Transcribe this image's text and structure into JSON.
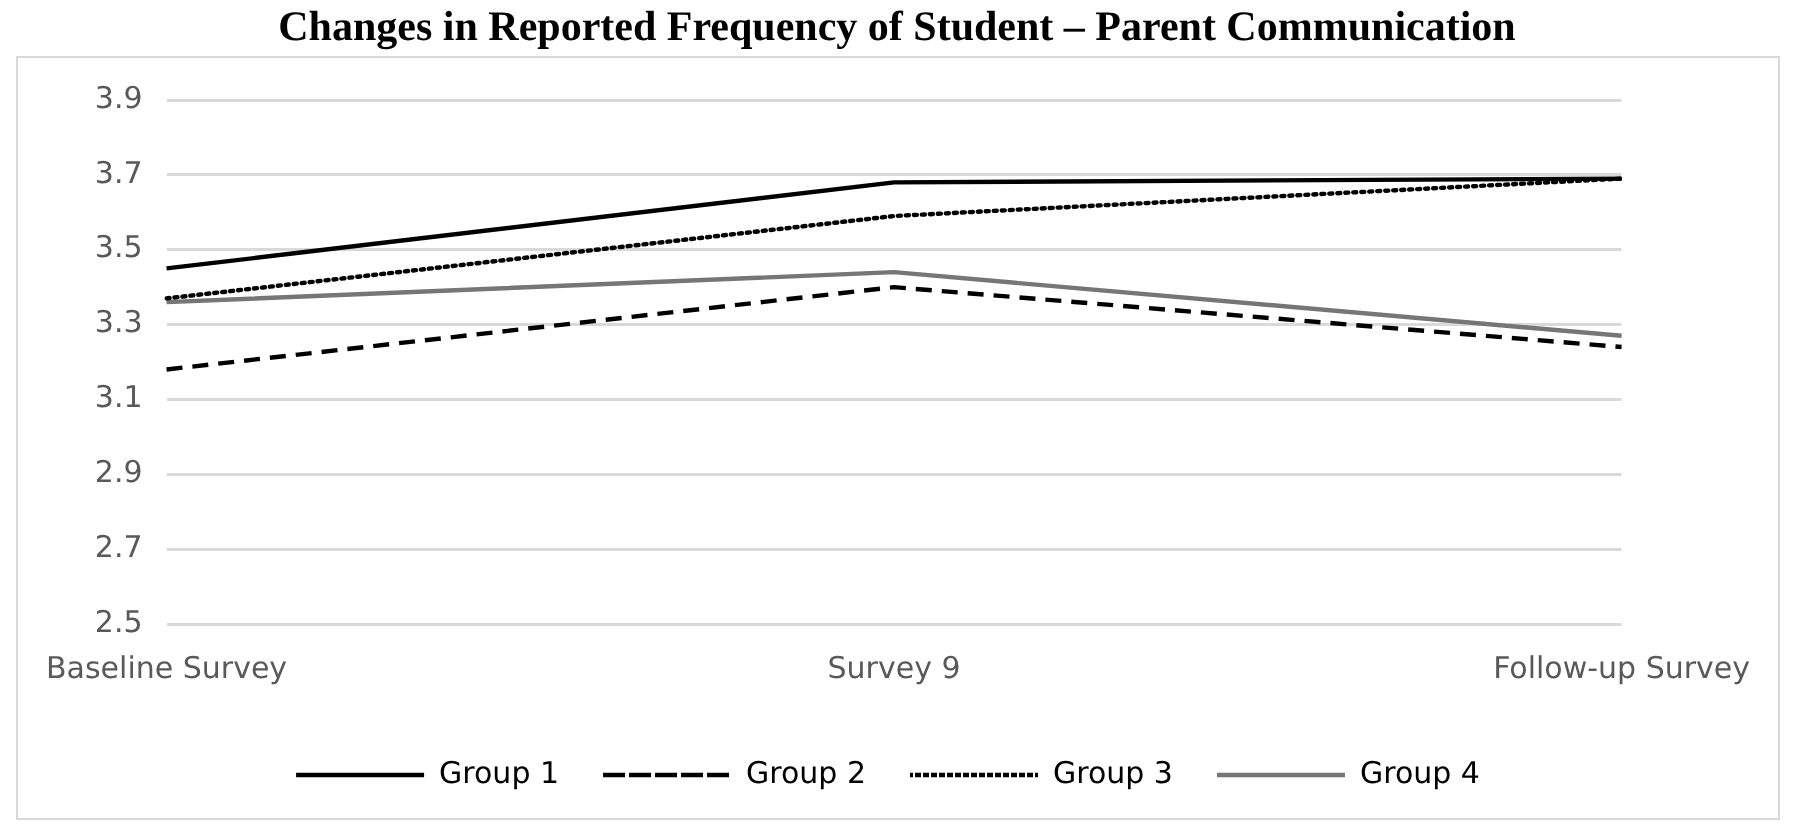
{
  "chart_data": {
    "type": "line",
    "title": "Changes in Reported Frequency of Student – Parent Communication",
    "categories": [
      "Baseline Survey",
      "Survey 9",
      "Follow-up Survey"
    ],
    "series": [
      {
        "name": "Group 1",
        "color": "#000000",
        "line_style": "solid",
        "values": [
          3.45,
          3.68,
          3.69
        ]
      },
      {
        "name": "Group 2",
        "color": "#000000",
        "line_style": "dashed",
        "values": [
          3.18,
          3.4,
          3.24
        ]
      },
      {
        "name": "Group 3",
        "color": "#000000",
        "line_style": "dotted",
        "values": [
          3.37,
          3.59,
          3.69
        ]
      },
      {
        "name": "Group 4",
        "color": "#767676",
        "line_style": "solid",
        "values": [
          3.36,
          3.44,
          3.27
        ]
      }
    ],
    "ylim": [
      2.5,
      3.9
    ],
    "yticks": [
      2.5,
      2.7,
      2.9,
      3.1,
      3.3,
      3.5,
      3.7,
      3.9
    ],
    "grid": "y",
    "legend": "bottom",
    "marker": "none"
  }
}
